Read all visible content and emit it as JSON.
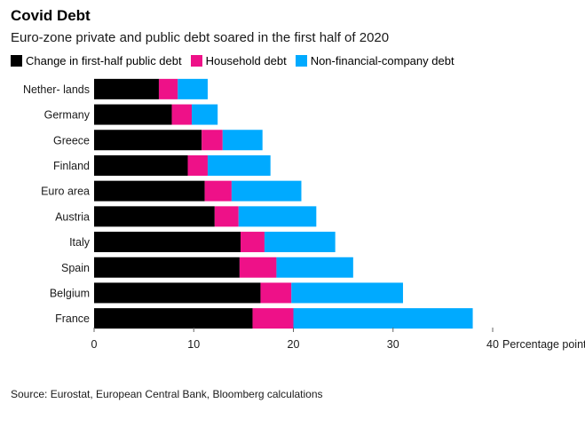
{
  "title": "Covid Debt",
  "subtitle": "Euro-zone private and public debt soared in the first half of 2020",
  "source": "Source: Eurostat, European Central Bank, Bloomberg calculations",
  "legend": [
    {
      "label": "Change in first-half public debt",
      "color": "#000000"
    },
    {
      "label": "Household debt",
      "color": "#ee1188"
    },
    {
      "label": "Non-financial-company debt",
      "color": "#00aaff"
    }
  ],
  "chart_data": {
    "type": "bar",
    "orientation": "horizontal",
    "stacked": true,
    "title": "Covid Debt",
    "subtitle": "Euro-zone private and public debt soared in the first half of 2020",
    "categories": [
      "Nether- lands",
      "Germany",
      "Greece",
      "Finland",
      "Euro area",
      "Austria",
      "Italy",
      "Spain",
      "Belgium",
      "France"
    ],
    "series": [
      {
        "name": "Change in first-half public debt",
        "color": "#000000",
        "values": [
          6.5,
          7.8,
          10.8,
          9.4,
          11.1,
          12.1,
          14.7,
          14.6,
          16.7,
          15.9
        ]
      },
      {
        "name": "Household debt",
        "color": "#ee1188",
        "values": [
          1.9,
          2.0,
          2.1,
          2.0,
          2.7,
          2.4,
          2.4,
          3.7,
          3.1,
          4.1
        ]
      },
      {
        "name": "Non-financial-company debt",
        "color": "#00aaff",
        "values": [
          3.0,
          2.6,
          4.0,
          6.3,
          7.0,
          7.8,
          7.1,
          7.7,
          11.2,
          18.0
        ]
      }
    ],
    "xlabel": "Percentage points of GD",
    "ticks": [
      0,
      10,
      20,
      30,
      40
    ],
    "tick_labels": [
      "0",
      "10",
      "20",
      "30",
      "40"
    ],
    "xlim": [
      0,
      40
    ],
    "grid": false,
    "legend_position": "top-left"
  }
}
